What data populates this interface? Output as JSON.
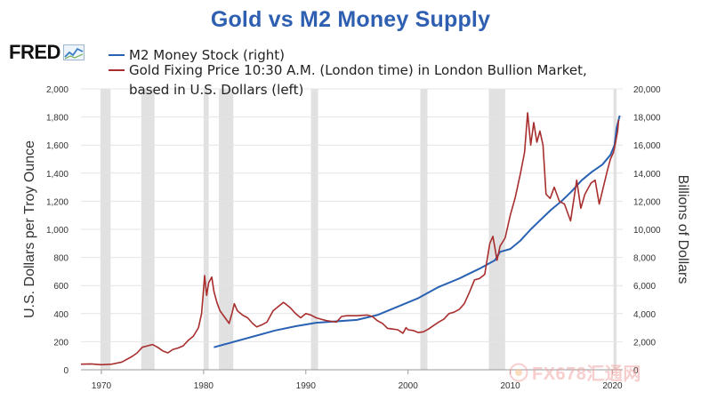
{
  "title": "Gold vs M2 Money Supply",
  "logo": {
    "text": "FRED"
  },
  "watermark": {
    "text": "FX678汇通网"
  },
  "chart_data": {
    "type": "line",
    "title": "Gold vs M2 Money Supply",
    "xlabel": "",
    "ylabel_left": "U.S. Dollars per Troy Ounce",
    "ylabel_right": "Billions of Dollars",
    "xlim": [
      1968,
      2021
    ],
    "ylim_left": [
      0,
      2000
    ],
    "ylim_right": [
      0,
      20000
    ],
    "x_ticks": [
      1970,
      1980,
      1990,
      2000,
      2010,
      2020
    ],
    "x_tick_labels": [
      "1970",
      "1980",
      "1990",
      "2000",
      "2010",
      "2020"
    ],
    "left_ticks": [
      0,
      200,
      400,
      600,
      800,
      1000,
      1200,
      1400,
      1600,
      1800,
      2000
    ],
    "left_tick_labels": [
      "0",
      "200",
      "400",
      "600",
      "800",
      "1,000",
      "1,200",
      "1,400",
      "1,600",
      "1,800",
      "2,000"
    ],
    "right_ticks": [
      0,
      2000,
      4000,
      6000,
      8000,
      10000,
      12000,
      14000,
      16000,
      18000,
      20000
    ],
    "right_tick_labels": [
      "0",
      "2,000",
      "4,000",
      "6,000",
      "8,000",
      "10,000",
      "12,000",
      "14,000",
      "16,000",
      "18,000",
      "20,000"
    ],
    "recessions": [
      [
        1969.9,
        1970.9
      ],
      [
        1973.9,
        1975.2
      ],
      [
        1980.0,
        1980.5
      ],
      [
        1981.5,
        1982.9
      ],
      [
        1990.5,
        1991.2
      ],
      [
        2001.2,
        2001.9
      ],
      [
        2007.9,
        2009.5
      ],
      [
        2020.1,
        2020.4
      ]
    ],
    "legend_position": "top-left",
    "series": [
      {
        "name": "M2 Money Stock (right)",
        "axis": "right",
        "color": "#2a62b3",
        "points": [
          [
            1981.0,
            1600
          ],
          [
            1983.0,
            2000
          ],
          [
            1985.0,
            2400
          ],
          [
            1987.0,
            2800
          ],
          [
            1989.0,
            3100
          ],
          [
            1991.0,
            3350
          ],
          [
            1993.0,
            3450
          ],
          [
            1995.0,
            3550
          ],
          [
            1997.0,
            3900
          ],
          [
            1999.0,
            4500
          ],
          [
            2001.0,
            5100
          ],
          [
            2003.0,
            5900
          ],
          [
            2005.0,
            6500
          ],
          [
            2007.0,
            7200
          ],
          [
            2008.5,
            7800
          ],
          [
            2009.0,
            8400
          ],
          [
            2010.0,
            8600
          ],
          [
            2011.0,
            9200
          ],
          [
            2012.0,
            10000
          ],
          [
            2013.0,
            10700
          ],
          [
            2014.0,
            11400
          ],
          [
            2015.0,
            12000
          ],
          [
            2016.0,
            12700
          ],
          [
            2017.0,
            13500
          ],
          [
            2018.0,
            14100
          ],
          [
            2019.0,
            14600
          ],
          [
            2019.8,
            15300
          ],
          [
            2020.2,
            16000
          ],
          [
            2020.4,
            17200
          ],
          [
            2020.7,
            18100
          ]
        ]
      },
      {
        "name": "Gold Fixing Price 10:30 A.M. (London time) in London Bullion Market, based in U.S. Dollars (left)",
        "legend_lines": [
          "Gold Fixing Price 10:30 A.M. (London time) in London Bullion Market,",
          "based in U.S. Dollars (left)"
        ],
        "axis": "left",
        "color": "#a82e2e",
        "points": [
          [
            1968.0,
            40
          ],
          [
            1969.0,
            42
          ],
          [
            1970.0,
            36
          ],
          [
            1971.0,
            40
          ],
          [
            1972.0,
            55
          ],
          [
            1973.0,
            95
          ],
          [
            1973.5,
            120
          ],
          [
            1974.0,
            160
          ],
          [
            1974.5,
            170
          ],
          [
            1975.0,
            180
          ],
          [
            1975.5,
            160
          ],
          [
            1976.0,
            135
          ],
          [
            1976.5,
            120
          ],
          [
            1977.0,
            145
          ],
          [
            1977.5,
            155
          ],
          [
            1978.0,
            170
          ],
          [
            1978.5,
            210
          ],
          [
            1979.0,
            240
          ],
          [
            1979.5,
            300
          ],
          [
            1979.8,
            400
          ],
          [
            1980.0,
            580
          ],
          [
            1980.1,
            670
          ],
          [
            1980.3,
            530
          ],
          [
            1980.5,
            620
          ],
          [
            1980.8,
            660
          ],
          [
            1981.0,
            560
          ],
          [
            1981.3,
            480
          ],
          [
            1981.6,
            420
          ],
          [
            1982.0,
            380
          ],
          [
            1982.5,
            330
          ],
          [
            1982.8,
            410
          ],
          [
            1983.0,
            470
          ],
          [
            1983.3,
            420
          ],
          [
            1983.8,
            390
          ],
          [
            1984.3,
            370
          ],
          [
            1984.8,
            330
          ],
          [
            1985.2,
            305
          ],
          [
            1985.7,
            320
          ],
          [
            1986.2,
            340
          ],
          [
            1986.8,
            420
          ],
          [
            1987.3,
            450
          ],
          [
            1987.8,
            480
          ],
          [
            1988.0,
            470
          ],
          [
            1988.5,
            440
          ],
          [
            1989.0,
            400
          ],
          [
            1989.5,
            370
          ],
          [
            1990.0,
            400
          ],
          [
            1990.5,
            390
          ],
          [
            1991.0,
            370
          ],
          [
            1991.5,
            360
          ],
          [
            1992.0,
            350
          ],
          [
            1992.5,
            345
          ],
          [
            1993.0,
            340
          ],
          [
            1993.5,
            380
          ],
          [
            1994.0,
            385
          ],
          [
            1995.0,
            385
          ],
          [
            1996.0,
            390
          ],
          [
            1996.5,
            380
          ],
          [
            1997.0,
            350
          ],
          [
            1997.5,
            330
          ],
          [
            1998.0,
            295
          ],
          [
            1998.5,
            290
          ],
          [
            1999.0,
            285
          ],
          [
            1999.5,
            260
          ],
          [
            1999.8,
            300
          ],
          [
            2000.0,
            285
          ],
          [
            2000.5,
            280
          ],
          [
            2001.0,
            265
          ],
          [
            2001.5,
            270
          ],
          [
            2002.0,
            290
          ],
          [
            2002.5,
            315
          ],
          [
            2003.0,
            340
          ],
          [
            2003.5,
            360
          ],
          [
            2004.0,
            400
          ],
          [
            2004.5,
            410
          ],
          [
            2005.0,
            430
          ],
          [
            2005.5,
            470
          ],
          [
            2006.0,
            550
          ],
          [
            2006.5,
            640
          ],
          [
            2007.0,
            650
          ],
          [
            2007.5,
            680
          ],
          [
            2008.0,
            900
          ],
          [
            2008.3,
            950
          ],
          [
            2008.7,
            780
          ],
          [
            2009.0,
            880
          ],
          [
            2009.5,
            940
          ],
          [
            2010.0,
            1100
          ],
          [
            2010.5,
            1230
          ],
          [
            2011.0,
            1400
          ],
          [
            2011.4,
            1550
          ],
          [
            2011.7,
            1830
          ],
          [
            2012.0,
            1600
          ],
          [
            2012.3,
            1760
          ],
          [
            2012.6,
            1620
          ],
          [
            2012.9,
            1700
          ],
          [
            2013.2,
            1600
          ],
          [
            2013.5,
            1250
          ],
          [
            2013.9,
            1220
          ],
          [
            2014.3,
            1300
          ],
          [
            2014.8,
            1200
          ],
          [
            2015.3,
            1180
          ],
          [
            2015.9,
            1060
          ],
          [
            2016.5,
            1350
          ],
          [
            2016.9,
            1150
          ],
          [
            2017.3,
            1250
          ],
          [
            2017.9,
            1330
          ],
          [
            2018.3,
            1350
          ],
          [
            2018.7,
            1180
          ],
          [
            2019.1,
            1300
          ],
          [
            2019.5,
            1420
          ],
          [
            2019.8,
            1500
          ],
          [
            2020.1,
            1550
          ],
          [
            2020.3,
            1620
          ],
          [
            2020.5,
            1700
          ],
          [
            2020.6,
            1780
          ]
        ]
      }
    ]
  }
}
